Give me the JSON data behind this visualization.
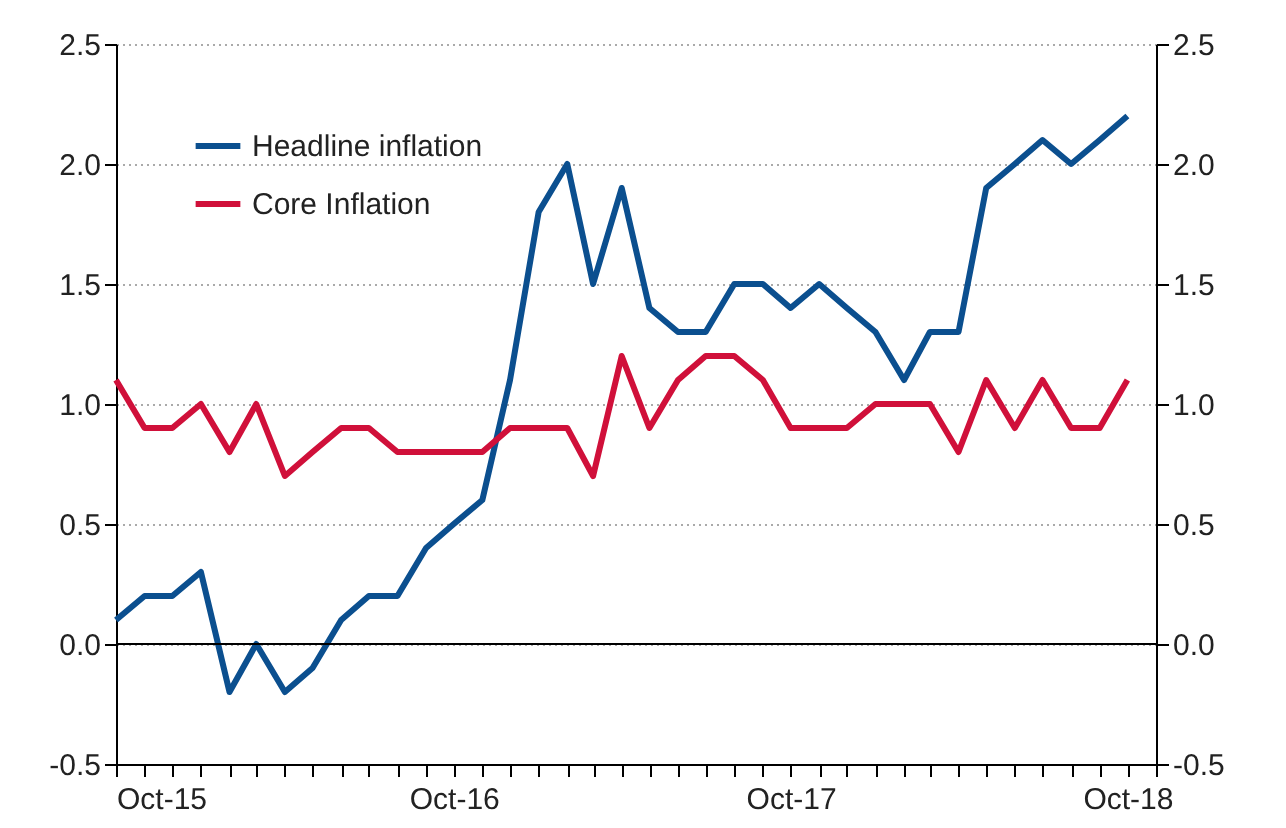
{
  "chart_data": {
    "type": "line",
    "x": [
      "2015-10",
      "2015-11",
      "2015-12",
      "2016-01",
      "2016-02",
      "2016-03",
      "2016-04",
      "2016-05",
      "2016-06",
      "2016-07",
      "2016-08",
      "2016-09",
      "2016-10",
      "2016-11",
      "2016-12",
      "2017-01",
      "2017-02",
      "2017-03",
      "2017-04",
      "2017-05",
      "2017-06",
      "2017-07",
      "2017-08",
      "2017-09",
      "2017-10",
      "2017-11",
      "2017-12",
      "2018-01",
      "2018-02",
      "2018-03",
      "2018-04",
      "2018-05",
      "2018-06",
      "2018-07",
      "2018-08",
      "2018-09",
      "2018-10"
    ],
    "series": [
      {
        "name": "Headline inflation",
        "color": "#0b4f8f",
        "values": [
          0.1,
          0.2,
          0.2,
          0.3,
          -0.2,
          0.0,
          -0.2,
          -0.1,
          0.1,
          0.2,
          0.2,
          0.4,
          0.5,
          0.6,
          1.1,
          1.8,
          2.0,
          1.5,
          1.9,
          1.4,
          1.3,
          1.3,
          1.5,
          1.5,
          1.4,
          1.5,
          1.4,
          1.3,
          1.1,
          1.3,
          1.3,
          1.9,
          2.0,
          2.1,
          2.0,
          2.1,
          2.2
        ]
      },
      {
        "name": "Core Inflation",
        "color": "#d0103a",
        "values": [
          1.1,
          0.9,
          0.9,
          1.0,
          0.8,
          1.0,
          0.7,
          0.8,
          0.9,
          0.9,
          0.8,
          0.8,
          0.8,
          0.8,
          0.9,
          0.9,
          0.9,
          0.7,
          1.2,
          0.9,
          1.1,
          1.2,
          1.2,
          1.1,
          0.9,
          0.9,
          0.9,
          1.0,
          1.0,
          1.0,
          0.8,
          1.1,
          0.9,
          1.1,
          0.9,
          0.9,
          1.1
        ]
      }
    ],
    "xlim": [
      "2015-10",
      "2018-11"
    ],
    "xticks": [
      {
        "value": "2015-10",
        "label": "Oct-15"
      },
      {
        "value": "2015-11",
        "label": null
      },
      {
        "value": "2015-12",
        "label": null
      },
      {
        "value": "2016-01",
        "label": null
      },
      {
        "value": "2016-02",
        "label": null
      },
      {
        "value": "2016-03",
        "label": null
      },
      {
        "value": "2016-04",
        "label": null
      },
      {
        "value": "2016-05",
        "label": null
      },
      {
        "value": "2016-06",
        "label": null
      },
      {
        "value": "2016-07",
        "label": null
      },
      {
        "value": "2016-08",
        "label": null
      },
      {
        "value": "2016-09",
        "label": null
      },
      {
        "value": "2016-10",
        "label": "Oct-16"
      },
      {
        "value": "2016-11",
        "label": null
      },
      {
        "value": "2016-12",
        "label": null
      },
      {
        "value": "2017-01",
        "label": null
      },
      {
        "value": "2017-02",
        "label": null
      },
      {
        "value": "2017-03",
        "label": null
      },
      {
        "value": "2017-04",
        "label": null
      },
      {
        "value": "2017-05",
        "label": null
      },
      {
        "value": "2017-06",
        "label": null
      },
      {
        "value": "2017-07",
        "label": null
      },
      {
        "value": "2017-08",
        "label": null
      },
      {
        "value": "2017-09",
        "label": null
      },
      {
        "value": "2017-10",
        "label": "Oct-17"
      },
      {
        "value": "2017-11",
        "label": null
      },
      {
        "value": "2017-12",
        "label": null
      },
      {
        "value": "2018-01",
        "label": null
      },
      {
        "value": "2018-02",
        "label": null
      },
      {
        "value": "2018-03",
        "label": null
      },
      {
        "value": "2018-04",
        "label": null
      },
      {
        "value": "2018-05",
        "label": null
      },
      {
        "value": "2018-06",
        "label": null
      },
      {
        "value": "2018-07",
        "label": null
      },
      {
        "value": "2018-08",
        "label": null
      },
      {
        "value": "2018-09",
        "label": null
      },
      {
        "value": "2018-10",
        "label": "Oct-18"
      },
      {
        "value": "2018-11",
        "label": null
      }
    ],
    "ylim": [
      -0.5,
      2.5
    ],
    "yticks": [
      -0.5,
      {
        "value": 0,
        "label": "0.0"
      },
      0.5,
      {
        "value": 1,
        "label": "1.0"
      },
      1.5,
      {
        "value": 2,
        "label": "2.0"
      },
      2.5
    ],
    "y2lim": [
      -0.5,
      2.5
    ],
    "y2ticks": [
      -0.5,
      {
        "value": 0,
        "label": "0.0"
      },
      0.5,
      {
        "value": 1,
        "label": "1.0"
      },
      1.5,
      {
        "value": 2,
        "label": "2.0"
      },
      2.5
    ],
    "ref_lines": [
      {
        "axis": "y",
        "value": 0,
        "color": "#000000"
      }
    ],
    "grid": "y",
    "legend": "top left",
    "marker": "none",
    "line_style": "solid"
  }
}
